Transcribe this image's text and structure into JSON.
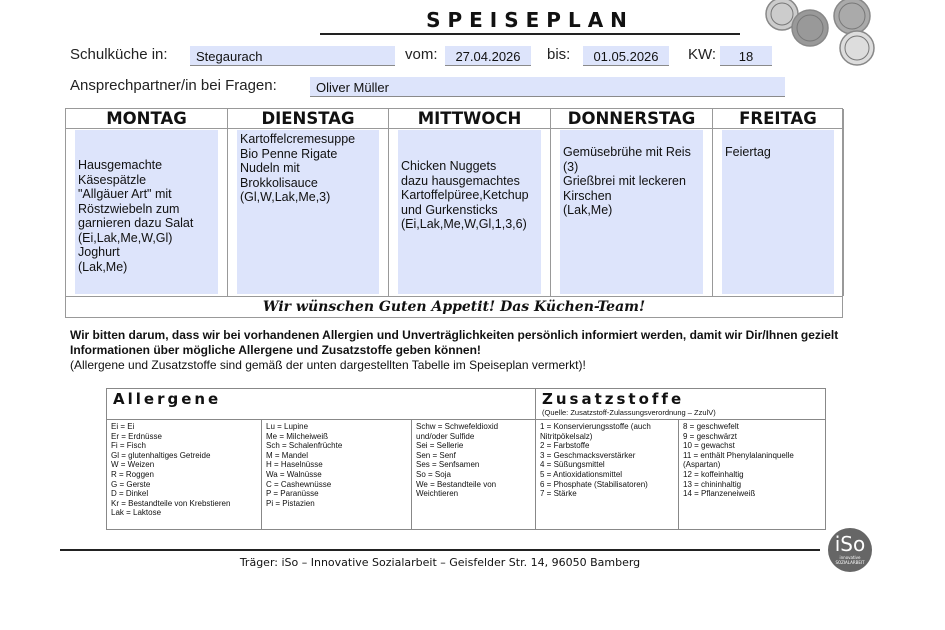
{
  "header": {
    "title": "SPEISEPLAN",
    "school_label": "Schulküche in:",
    "school": "Stegaurach",
    "from_label": "vom:",
    "from": "27.04.2026",
    "to_label": "bis:",
    "to": "01.05.2026",
    "kw_label": "KW:",
    "kw": "18",
    "contact_label": "Ansprechpartner/in bei Fragen:",
    "contact": "Oliver Müller"
  },
  "days": [
    {
      "name": "MONTAG",
      "menu": "Hausgemachte\nKäsespätzle\n\"Allgäuer Art\" mit\nRöstzwiebeln zum\ngarnieren dazu Salat\n(Ei,Lak,Me,W,Gl)\nJoghurt\n(Lak,Me)"
    },
    {
      "name": "DIENSTAG",
      "menu": "Kartoffelcremesuppe\nBio Penne Rigate\nNudeln mit Brokkolisauce\n(Gl,W,Lak,Me,3)"
    },
    {
      "name": "MITTWOCH",
      "menu": "Chicken Nuggets\ndazu hausgemachtes\nKartoffelpüree,Ketchup\nund Gurkensticks\n(Ei,Lak,Me,W,Gl,1,3,6)"
    },
    {
      "name": "DONNERSTAG",
      "menu": "Gemüsebrühe mit Reis\n(3)\nGrießbrei mit leckeren\nKirschen\n(Lak,Me)"
    },
    {
      "name": "FREITAG",
      "menu": "Feiertag"
    }
  ],
  "wish": "Wir wünschen Guten Appetit! Das Küchen-Team!",
  "notice": {
    "bold": "Wir bitten darum, dass wir bei vorhandenen Allergien und Unverträglichkeiten persönlich informiert werden, damit wir Dir/Ihnen gezielt Informationen über mögliche Allergene und Zusatzstoffe geben können!",
    "normal": "(Allergene und Zusatzstoffe sind gemäß der unten dargestellten Tabelle im Speiseplan vermerkt)!"
  },
  "allergens": {
    "title": "Allergene",
    "cols": [
      "Ei = Ei\nEr = Erdnüsse\nFi = Fisch\nGl = glutenhaltiges Getreide\n        W = Weizen\n        R = Roggen\n        G = Gerste\n        D = Dinkel\nKr = Bestandteile von Krebstieren\nLak = Laktose",
      "Lu = Lupine\nMe = Milcheiweiß\nSch = Schalenfrüchte\n        M = Mandel\n        H = Haselnüsse\n        Wa = Walnüsse\n        C = Cashewnüsse\n        P = Paranüsse\n        Pi = Pistazien",
      "Schw = Schwefeldioxid\nund/oder Sulfide\nSei = Sellerie\nSen = Senf\nSes = Senfsamen\nSo = Soja\nWe = Bestandteile von\nWeichtieren"
    ]
  },
  "additives": {
    "title": "Zusatzstoffe",
    "source": "(Quelle: Zusatzstoff-Zulassungsverordnung – ZzulV)",
    "cols": [
      "1 = Konservierungsstoffe (auch\nNitritpökelsalz)\n2 = Farbstoffe\n3 = Geschmacksverstärker\n4 = Süßungsmittel\n5 = Antioxidationsmittel\n6 = Phosphate (Stabilisatoren)\n7 = Stärke",
      "8 = geschwefelt\n9 = geschwärzt\n10 = gewachst\n11 = enthält Phenylalaninquelle\n(Aspartan)\n12 = koffeinhaltig\n13 = chininhaltig\n14 = Pflanzeneiweiß"
    ]
  },
  "footer": {
    "text": "Träger: iSo – Innovative Sozialarbeit – Geisfelder Str. 14, 96050 Bamberg",
    "logo": "iSo",
    "logo_sub": "innovative SOZIALARBEIT"
  },
  "colors": {
    "field": "#dde4fb",
    "logo": "#666666"
  },
  "icons": [
    "plates-icon"
  ]
}
